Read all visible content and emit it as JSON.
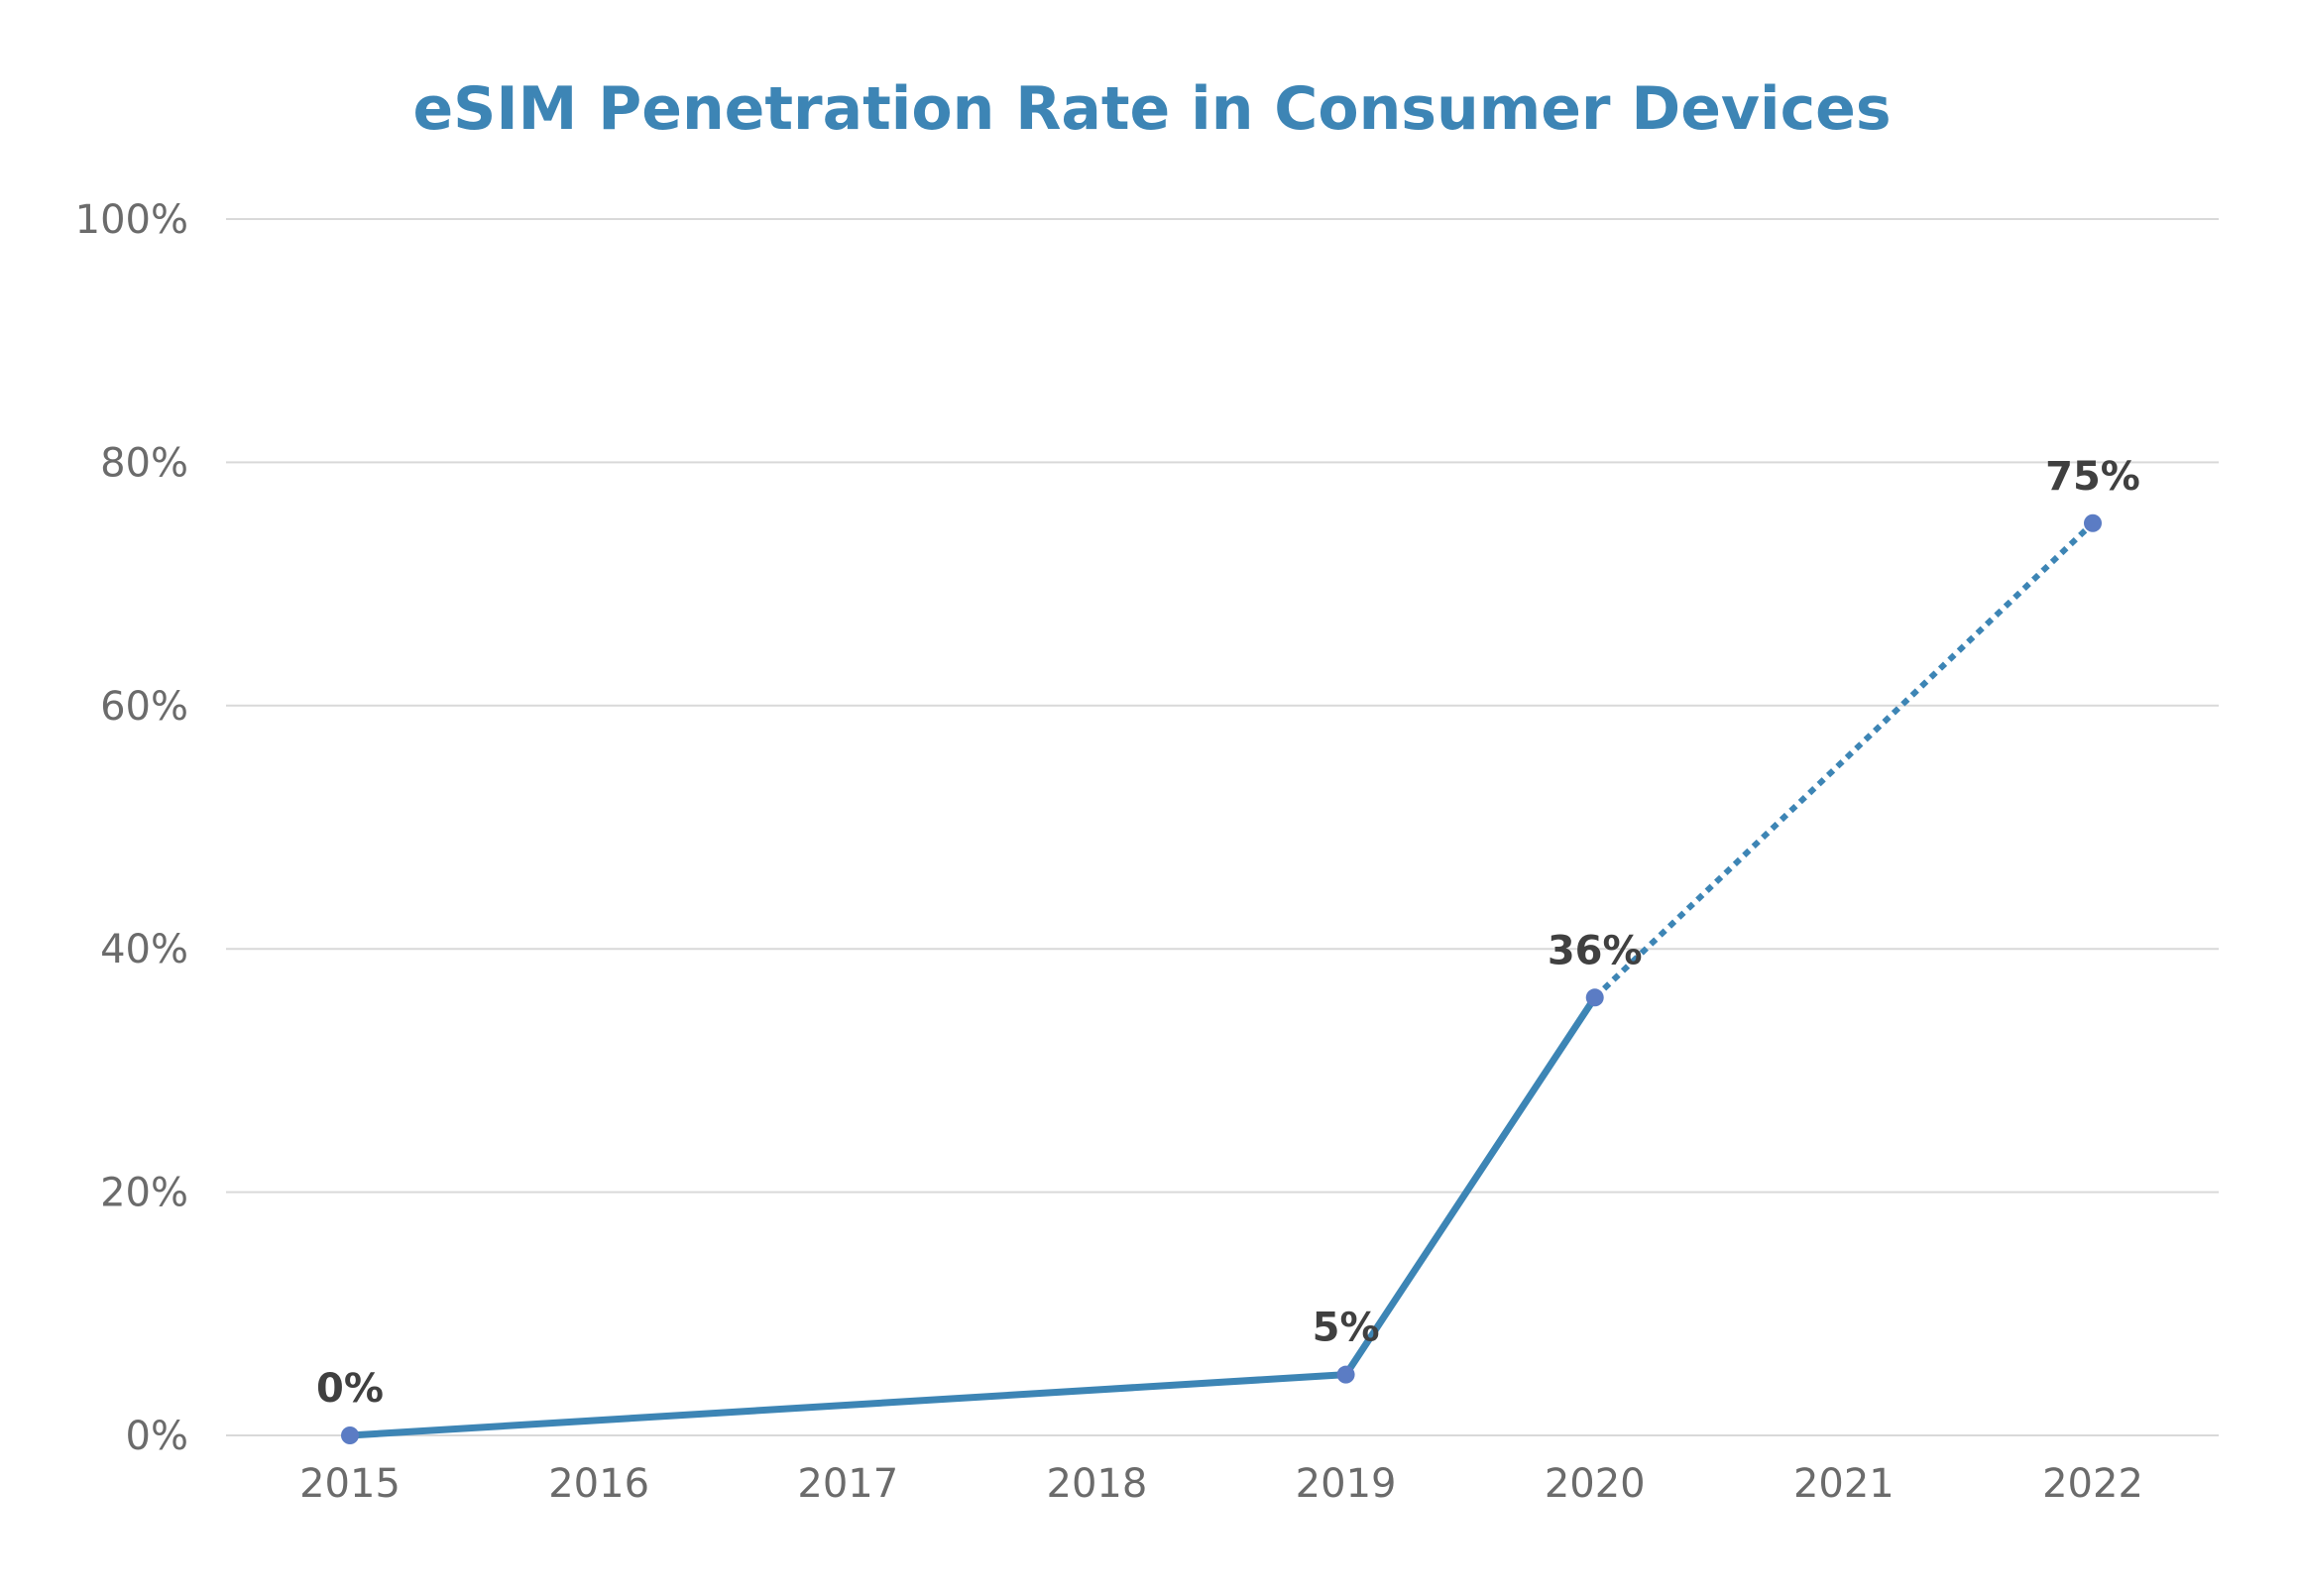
{
  "chart_data": {
    "type": "line",
    "title": "eSIM Penetration Rate in Consumer Devices",
    "xlabel": "",
    "ylabel": "",
    "categories": [
      "2015",
      "2016",
      "2017",
      "2018",
      "2019",
      "2020",
      "2021",
      "2022"
    ],
    "ylim": [
      0,
      100
    ],
    "y_ticks": [
      0,
      20,
      40,
      60,
      80,
      100
    ],
    "y_tick_labels": [
      "0%",
      "20%",
      "40%",
      "60%",
      "80%",
      "100%"
    ],
    "grid": true,
    "legend": "none",
    "series": [
      {
        "style": "solid",
        "points": [
          {
            "x": "2015",
            "y": 0
          },
          {
            "x": "2019",
            "y": 5
          },
          {
            "x": "2020",
            "y": 36
          }
        ]
      },
      {
        "style": "dotted",
        "points": [
          {
            "x": "2020",
            "y": 36
          },
          {
            "x": "2022",
            "y": 75
          }
        ]
      }
    ],
    "data_labels": [
      {
        "x": "2015",
        "y": 0,
        "text": "0%"
      },
      {
        "x": "2019",
        "y": 5,
        "text": "5%"
      },
      {
        "x": "2020",
        "y": 36,
        "text": "36%"
      },
      {
        "x": "2022",
        "y": 75,
        "text": "75%"
      }
    ],
    "colors": {
      "title": "#3D85B5",
      "line": "#3D85B5",
      "marker": "#5B7CC4",
      "grid": "#D9D9D9",
      "tick_text": "#6B6B6B",
      "data_label": "#404040"
    }
  }
}
